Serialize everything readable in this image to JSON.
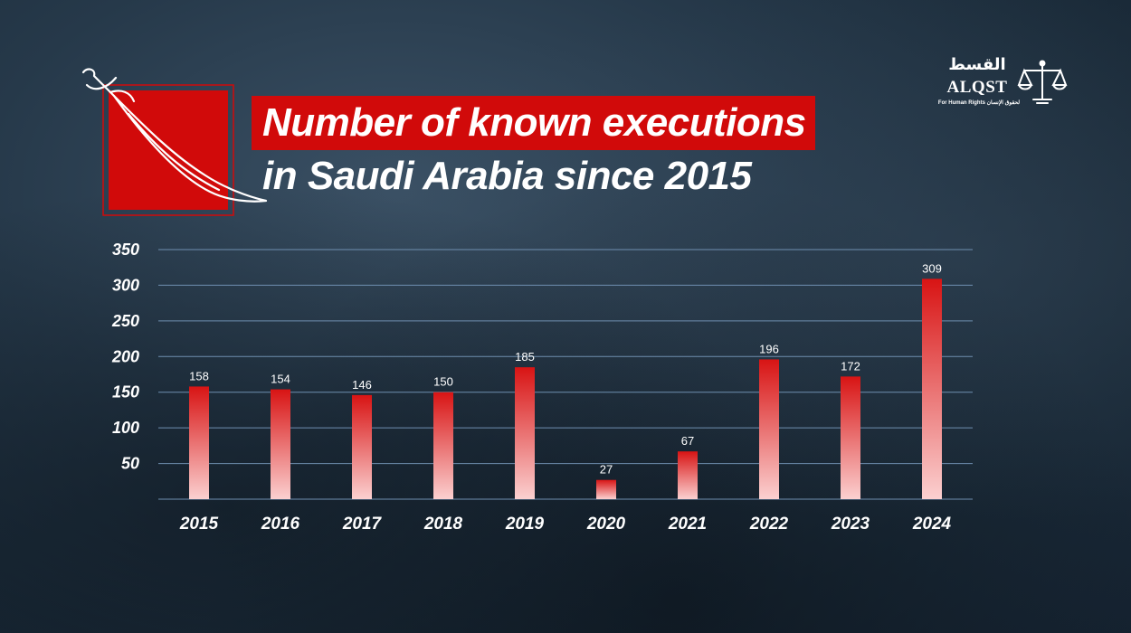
{
  "header": {
    "title_line1": "Number of known executions",
    "title_line2": "in Saudi Arabia since 2015",
    "accent_color": "#d10a0a"
  },
  "logo": {
    "arabic": "القسط",
    "latin": "ALQST",
    "tagline": "For Human Rights لحقوق الإنسان",
    "icon": "scales-of-justice-icon"
  },
  "emblem": {
    "icon": "sword-icon"
  },
  "chart_data": {
    "type": "bar",
    "title": "Number of known executions in Saudi Arabia since 2015",
    "categories": [
      "2015",
      "2016",
      "2017",
      "2018",
      "2019",
      "2020",
      "2021",
      "2022",
      "2023",
      "2024"
    ],
    "values": [
      158,
      154,
      146,
      150,
      185,
      27,
      67,
      196,
      172,
      309
    ],
    "y_ticks": [
      "50",
      "100",
      "150",
      "200",
      "250",
      "300",
      "350"
    ],
    "ylim": [
      0,
      350
    ],
    "grid": true,
    "bar_color_top": "#d81414",
    "bar_color_bottom": "#fbd0d0"
  }
}
